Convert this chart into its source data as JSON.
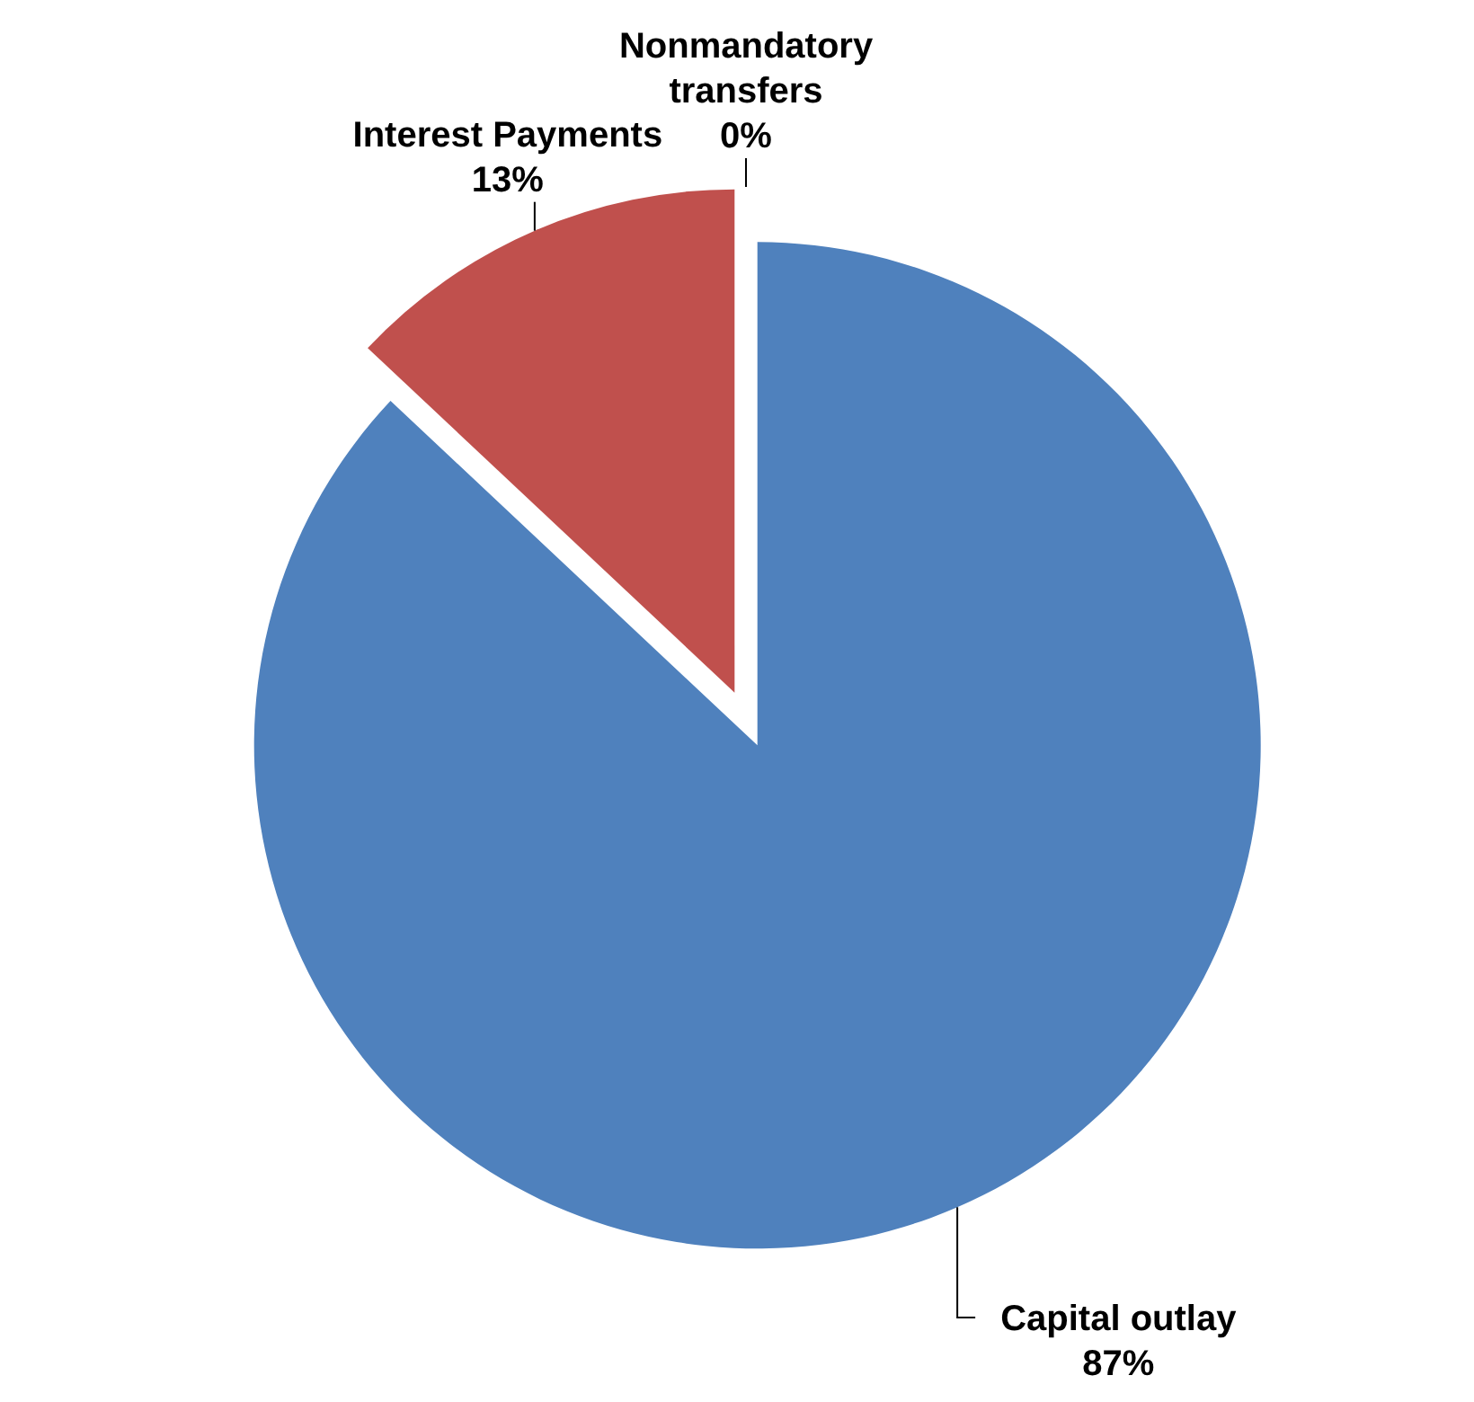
{
  "chart_data": {
    "type": "pie",
    "categories": [
      "Capital outlay",
      "Interest Payments",
      "Nonmandatory transfers"
    ],
    "values": [
      87,
      13,
      0
    ],
    "colors": [
      "#4f81bd",
      "#c0504d",
      "#9bbb59"
    ],
    "value_labels": [
      "87%",
      "13%",
      "0%"
    ]
  }
}
